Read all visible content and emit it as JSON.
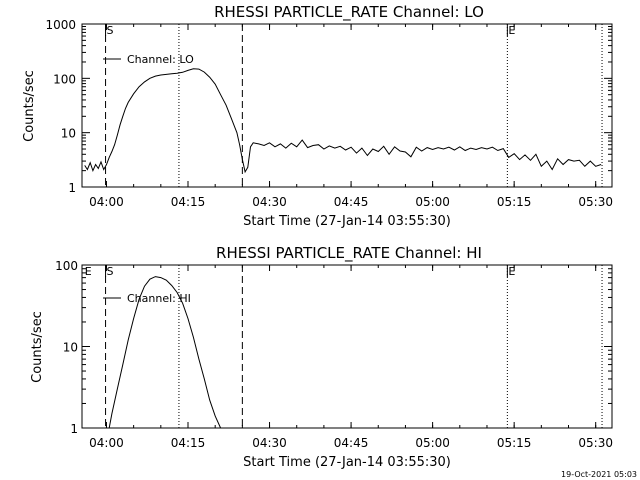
{
  "footer": {
    "timestamp": "19-Oct-2021 05:03"
  },
  "chart_data": [
    {
      "type": "line",
      "title": "RHESSI PARTICLE_RATE Channel: LO",
      "xlabel": "Start Time (27-Jan-14 03:55:30)",
      "ylabel": "Counts/sec",
      "xlim": [
        "03:55:30",
        "05:33:00"
      ],
      "ylim": [
        1,
        1000
      ],
      "yscale": "log",
      "x_ticks": [
        "04:00",
        "04:15",
        "04:30",
        "04:45",
        "05:00",
        "05:15",
        "05:30"
      ],
      "y_ticks": [
        "1",
        "10",
        "100",
        "1000"
      ],
      "legend": {
        "label": "Channel: LO",
        "position": "top-left"
      },
      "markers": [
        {
          "label": "S",
          "time": "03:59:50",
          "style": "solid"
        },
        {
          "label": "E",
          "time": "05:13:45",
          "style": "solid"
        }
      ],
      "vlines_dashed": [
        "03:59:50",
        "04:25:00"
      ],
      "vlines_dotted": [
        "04:13:20",
        "05:13:45",
        "05:31:10"
      ],
      "series": [
        {
          "x": [
            "03:56:00",
            "03:56:30",
            "03:57:00",
            "03:57:30",
            "03:58:00",
            "03:58:30",
            "03:59:00",
            "03:59:30",
            "04:00:00",
            "04:00:30",
            "04:01:00",
            "04:01:30",
            "04:02:00",
            "04:02:30",
            "04:03:00",
            "04:03:30",
            "04:04:00",
            "04:05:00",
            "04:06:00",
            "04:07:00",
            "04:08:00",
            "04:09:00",
            "04:10:00",
            "04:11:00",
            "04:12:00",
            "04:13:00",
            "04:14:00",
            "04:15:00",
            "04:16:00",
            "04:17:00",
            "04:18:00",
            "04:19:00",
            "04:20:00",
            "04:21:00",
            "04:22:00",
            "04:23:00",
            "04:24:00",
            "04:24:30",
            "04:25:00",
            "04:25:30",
            "04:26:00",
            "04:26:30",
            "04:27:00",
            "04:28:00",
            "04:29:00",
            "04:30:00",
            "04:31:00",
            "04:32:00",
            "04:33:00",
            "04:34:00",
            "04:35:00",
            "04:36:00",
            "04:37:00",
            "04:38:00",
            "04:39:00",
            "04:40:00",
            "04:41:00",
            "04:42:00",
            "04:43:00",
            "04:44:00",
            "04:45:00",
            "04:46:00",
            "04:47:00",
            "04:48:00",
            "04:49:00",
            "04:50:00",
            "04:51:00",
            "04:52:00",
            "04:53:00",
            "04:54:00",
            "04:55:00",
            "04:56:00",
            "04:57:00",
            "04:58:00",
            "04:59:00",
            "05:00:00",
            "05:01:00",
            "05:02:00",
            "05:03:00",
            "05:04:00",
            "05:05:00",
            "05:06:00",
            "05:07:00",
            "05:08:00",
            "05:09:00",
            "05:10:00",
            "05:11:00",
            "05:12:00",
            "05:13:00",
            "05:14:00",
            "05:15:00",
            "05:16:00",
            "05:17:00",
            "05:18:00",
            "05:19:00",
            "05:20:00",
            "05:21:00",
            "05:22:00",
            "05:23:00",
            "05:24:00",
            "05:25:00",
            "05:26:00",
            "05:27:00",
            "05:28:00",
            "05:29:00",
            "05:30:00",
            "05:31:00"
          ],
          "values": [
            2.5,
            2.1,
            2.8,
            2.0,
            2.6,
            2.2,
            2.9,
            2.1,
            2.6,
            3.5,
            4.5,
            6,
            9,
            14,
            20,
            28,
            36,
            52,
            70,
            86,
            100,
            110,
            115,
            118,
            121,
            124,
            129,
            140,
            150,
            148,
            130,
            105,
            78,
            50,
            32,
            18,
            10,
            6,
            3.2,
            1.9,
            2.3,
            5.5,
            6.5,
            6.2,
            5.8,
            6.5,
            5.5,
            6.2,
            5.2,
            6.4,
            5.5,
            7.3,
            5.3,
            5.8,
            6.0,
            5.0,
            5.7,
            5.2,
            5.6,
            4.8,
            5.4,
            4.2,
            5.2,
            3.8,
            5.0,
            4.5,
            5.6,
            4.0,
            5.5,
            4.6,
            4.4,
            3.6,
            5.4,
            4.6,
            5.3,
            4.9,
            5.3,
            5.0,
            5.4,
            4.8,
            5.5,
            4.7,
            5.2,
            4.9,
            5.3,
            5.0,
            5.4,
            4.7,
            5.1,
            3.5,
            4.1,
            3.2,
            3.9,
            3.1,
            4.0,
            2.4,
            3.0,
            2.1,
            3.3,
            2.6,
            3.2,
            3.0,
            3.1,
            2.4,
            3.0,
            2.4,
            2.6
          ]
        }
      ]
    },
    {
      "type": "line",
      "title": "RHESSI PARTICLE_RATE Channel: HI",
      "xlabel": "Start Time (27-Jan-14 03:55:30)",
      "ylabel": "Counts/sec",
      "xlim": [
        "03:55:30",
        "05:33:00"
      ],
      "ylim": [
        1,
        100
      ],
      "yscale": "log",
      "x_ticks": [
        "04:00",
        "04:15",
        "04:30",
        "04:45",
        "05:00",
        "05:15",
        "05:30"
      ],
      "y_ticks": [
        "1",
        "10",
        "100"
      ],
      "legend": {
        "label": "Channel: HI",
        "position": "top-left"
      },
      "markers": [
        {
          "label": "E",
          "time": "03:55:50",
          "style": "none"
        },
        {
          "label": "S",
          "time": "03:59:50",
          "style": "solid"
        },
        {
          "label": "E",
          "time": "05:13:45",
          "style": "solid"
        }
      ],
      "vlines_dashed": [
        "03:59:50",
        "04:25:00"
      ],
      "vlines_dotted": [
        "04:13:20",
        "05:13:45",
        "05:31:10"
      ],
      "series": [
        {
          "x": [
            "04:00:30",
            "04:01:00",
            "04:02:00",
            "04:03:00",
            "04:04:00",
            "04:05:00",
            "04:06:00",
            "04:07:00",
            "04:08:00",
            "04:09:00",
            "04:10:00",
            "04:11:00",
            "04:12:00",
            "04:13:00",
            "04:14:00",
            "04:15:00",
            "04:16:00",
            "04:17:00",
            "04:18:00",
            "04:19:00",
            "04:20:00",
            "04:21:00"
          ],
          "values": [
            1.0,
            1.5,
            3,
            6,
            12,
            22,
            38,
            55,
            67,
            72,
            70,
            65,
            56,
            46,
            34,
            22,
            13,
            7,
            4,
            2.2,
            1.4,
            1.0
          ]
        }
      ]
    }
  ]
}
